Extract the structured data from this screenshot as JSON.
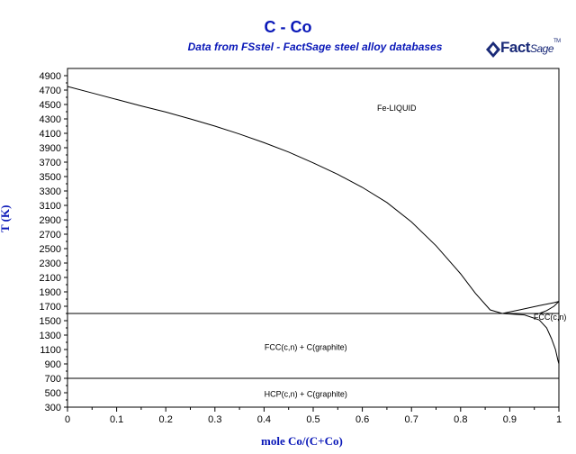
{
  "chart_data": {
    "type": "line",
    "title": "C - Co",
    "subtitle": "Data from FSstel - FactSage steel alloy databases",
    "xlabel": "mole Co/(C+Co)",
    "ylabel": "T (K)",
    "xlim": [
      0,
      1
    ],
    "ylim": [
      300,
      5000
    ],
    "x_ticks": [
      "0",
      "0.1",
      "0.2",
      "0.3",
      "0.4",
      "0.5",
      "0.6",
      "0.7",
      "0.8",
      "0.9",
      "1"
    ],
    "y_ticks": [
      "300",
      "500",
      "700",
      "900",
      "1100",
      "1300",
      "1500",
      "1700",
      "1900",
      "2100",
      "2300",
      "2500",
      "2700",
      "2900",
      "3100",
      "3300",
      "3500",
      "3700",
      "3900",
      "4100",
      "4300",
      "4500",
      "4700",
      "4900"
    ],
    "grid": false,
    "series": [
      {
        "x": [
          0,
          0.05,
          0.1,
          0.15,
          0.2,
          0.25,
          0.3,
          0.35,
          0.4,
          0.45,
          0.5,
          0.55,
          0.6,
          0.65,
          0.7,
          0.75,
          0.8,
          0.83,
          0.86,
          0.885
        ],
        "y": [
          4750,
          4660,
          4570,
          4480,
          4395,
          4300,
          4200,
          4090,
          3970,
          3840,
          3690,
          3530,
          3350,
          3140,
          2870,
          2540,
          2150,
          1880,
          1650,
          1600
        ]
      },
      {
        "x": [
          0.885,
          0.92,
          0.96,
          0.99,
          1.0
        ],
        "y": [
          1600,
          1650,
          1710,
          1750,
          1768
        ]
      },
      {
        "x": [
          0.885,
          0.93,
          0.96,
          0.975,
          0.985,
          0.993,
          0.998,
          1.0
        ],
        "y": [
          1600,
          1580,
          1510,
          1400,
          1250,
          1100,
          950,
          900
        ]
      },
      {
        "x": [
          0,
          1.0
        ],
        "y": [
          1600,
          1600
        ]
      },
      {
        "x": [
          0,
          1.0
        ],
        "y": [
          700,
          700
        ]
      },
      {
        "x": [
          0.96,
          0.975,
          0.99,
          1.0
        ],
        "y": [
          1600,
          1640,
          1700,
          1768
        ]
      }
    ],
    "annotations": [
      {
        "text": "Fe-LIQUID",
        "x": 0.67,
        "y": 4450
      },
      {
        "text": "FCC(c,n)",
        "x": 0.982,
        "y": 1550
      },
      {
        "text": "FCC(c,n) + C(graphite)",
        "x": 0.485,
        "y": 1130
      },
      {
        "text": "HCP(c,n) + C(graphite)",
        "x": 0.485,
        "y": 480
      }
    ]
  },
  "logo": {
    "fact": "Fact",
    "sage": "Sage",
    "tm": "TM"
  },
  "colors": {
    "title": "#0a18b8",
    "axis": "#000000",
    "logo": "#1a2a78"
  }
}
